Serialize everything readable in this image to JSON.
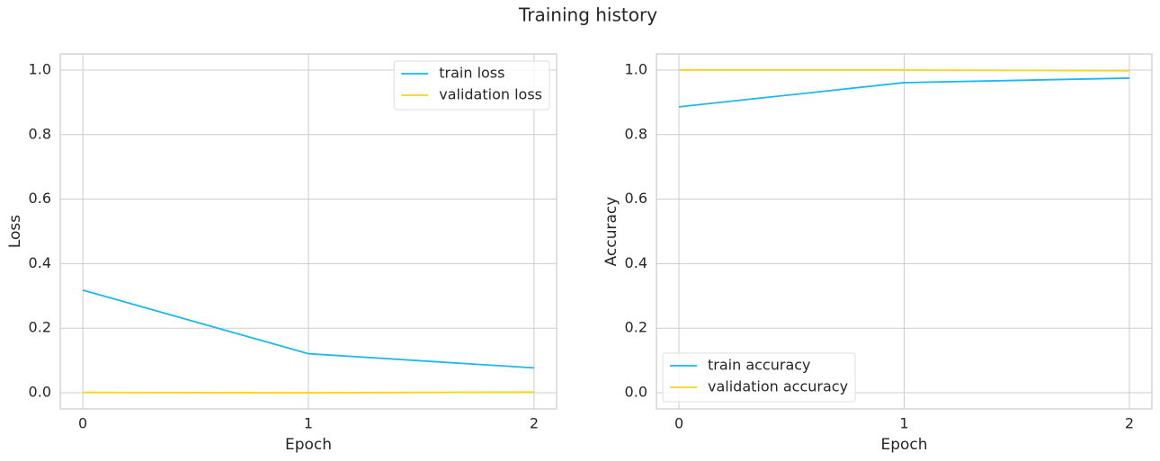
{
  "title": "Training history",
  "chart_data": [
    {
      "type": "line",
      "xlabel": "Epoch",
      "ylabel": "Loss",
      "x": [
        0,
        1,
        2
      ],
      "series": [
        {
          "name": "train loss",
          "color": "#1ab8f0",
          "values": [
            0.318,
            0.121,
            0.077
          ]
        },
        {
          "name": "validation loss",
          "color": "#ffd21a",
          "values": [
            0.001,
            0.0,
            0.002
          ]
        }
      ],
      "xlim": [
        -0.1,
        2.1
      ],
      "ylim": [
        -0.05,
        1.05
      ],
      "xticks": [
        0,
        1,
        2
      ],
      "yticks": [
        {
          "value": 0,
          "label": "0.0"
        },
        {
          "value": 0.2,
          "label": "0.2"
        },
        {
          "value": 0.4,
          "label": "0.4"
        },
        {
          "value": 0.6,
          "label": "0.6"
        },
        {
          "value": 0.8,
          "label": "0.8"
        },
        {
          "value": 1,
          "label": "1.0"
        }
      ],
      "grid": true,
      "legend": "upper right"
    },
    {
      "type": "line",
      "xlabel": "Epoch",
      "ylabel": "Accuracy",
      "x": [
        0,
        1,
        2
      ],
      "series": [
        {
          "name": "train accuracy",
          "color": "#1ab8f0",
          "values": [
            0.886,
            0.961,
            0.975
          ]
        },
        {
          "name": "validation accuracy",
          "color": "#ffd21a",
          "values": [
            1.0,
            1.0,
            0.998
          ]
        }
      ],
      "xlim": [
        -0.1,
        2.1
      ],
      "ylim": [
        -0.05,
        1.05
      ],
      "xticks": [
        0,
        1,
        2
      ],
      "yticks": [
        {
          "value": 0,
          "label": "0.0"
        },
        {
          "value": 0.2,
          "label": "0.2"
        },
        {
          "value": 0.4,
          "label": "0.4"
        },
        {
          "value": 0.6,
          "label": "0.6"
        },
        {
          "value": 0.8,
          "label": "0.8"
        },
        {
          "value": 1,
          "label": "1.0"
        }
      ],
      "grid": true,
      "legend": "lower left"
    }
  ]
}
